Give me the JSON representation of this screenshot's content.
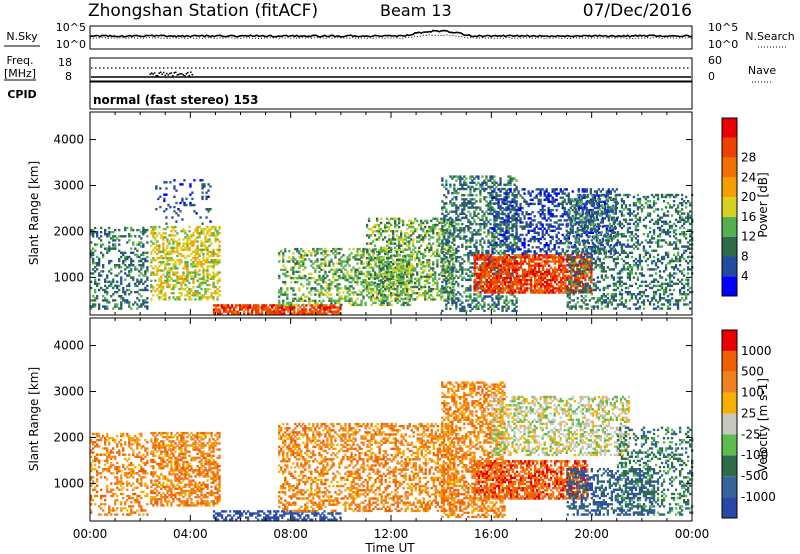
{
  "header": {
    "station": "Zhongshan Station (fitACF)",
    "beam": "Beam 13",
    "date": "07/Dec/2016"
  },
  "noise_panel": {
    "left_label": "N.Sky",
    "left_ticks": [
      "10^5",
      "10^0"
    ],
    "right_label": "N.Search",
    "right_ticks": [
      "10^5",
      "10^0"
    ]
  },
  "freq_panel": {
    "left_label_1": "Freq.",
    "left_label_2": "[MHz]",
    "left_ticks": [
      "18",
      "8"
    ],
    "right_label": "Nave",
    "right_ticks": [
      "60",
      "0"
    ]
  },
  "cpid_panel": {
    "label": "CPID",
    "text": "normal (fast stereo) 153"
  },
  "chart_data": [
    {
      "type": "heatmap",
      "title": "",
      "xlabel": "Time UT",
      "ylabel": "Slant Range [km]",
      "x_ticks": [
        "00:00",
        "04:00",
        "08:00",
        "12:00",
        "16:00",
        "20:00",
        "00:00"
      ],
      "y_ticks": [
        "1000",
        "2000",
        "3000",
        "4000"
      ],
      "ylim": [
        180,
        4600
      ],
      "colorbar": {
        "label": "Power [dB]",
        "ticks": [
          "4",
          "8",
          "12",
          "16",
          "20",
          "24",
          "28"
        ],
        "colors": [
          "#0000ff",
          "#244aa0",
          "#2f6b4a",
          "#54b050",
          "#d8d020",
          "#f5a000",
          "#f07000",
          "#ee4000",
          "#e80000"
        ]
      },
      "regions": [
        {
          "t0": 0.0,
          "t1": 2.3,
          "r0": 300,
          "r1": 2100,
          "level": 2,
          "density": 0.35
        },
        {
          "t0": 2.4,
          "t1": 5.2,
          "r0": 500,
          "r1": 2100,
          "level": 4,
          "density": 0.5
        },
        {
          "t0": 2.6,
          "t1": 4.8,
          "r0": 2150,
          "r1": 3100,
          "level": 1,
          "density": 0.12
        },
        {
          "t0": 4.9,
          "t1": 10.0,
          "r0": 190,
          "r1": 380,
          "level": 7,
          "density": 0.8
        },
        {
          "t0": 7.5,
          "t1": 12.8,
          "r0": 380,
          "r1": 1600,
          "level": 3,
          "density": 0.4
        },
        {
          "t0": 11.0,
          "t1": 14.5,
          "r0": 500,
          "r1": 2300,
          "level": 3,
          "density": 0.45
        },
        {
          "t0": 14.0,
          "t1": 17.0,
          "r0": 250,
          "r1": 3200,
          "level": 2,
          "density": 0.4
        },
        {
          "t0": 15.3,
          "t1": 20.0,
          "r0": 650,
          "r1": 1500,
          "level": 7,
          "density": 0.75
        },
        {
          "t0": 16.0,
          "t1": 21.0,
          "r0": 1500,
          "r1": 2900,
          "level": 1,
          "density": 0.4
        },
        {
          "t0": 19.0,
          "t1": 24.0,
          "r0": 300,
          "r1": 2800,
          "level": 2,
          "density": 0.35
        }
      ]
    },
    {
      "type": "heatmap",
      "title": "",
      "xlabel": "Time UT",
      "ylabel": "Slant Range [km]",
      "x_ticks": [
        "00:00",
        "04:00",
        "08:00",
        "12:00",
        "16:00",
        "20:00",
        "00:00"
      ],
      "y_ticks": [
        "1000",
        "2000",
        "3000",
        "4000"
      ],
      "ylim": [
        180,
        4600
      ],
      "colorbar": {
        "label": "Velocity [m s-1]",
        "ticks": [
          "1000",
          "500",
          "100",
          "25",
          "-25",
          "-100",
          "-500",
          "-1000"
        ],
        "colors": [
          "#2a48a8",
          "#36649a",
          "#2f6b4a",
          "#5cbc50",
          "#c8c8c0",
          "#f6b000",
          "#f08020",
          "#f06000",
          "#e80000"
        ]
      },
      "regions": [
        {
          "t0": 0.0,
          "t1": 2.3,
          "r0": 300,
          "r1": 2100,
          "level": 6,
          "density": 0.35
        },
        {
          "t0": 2.4,
          "t1": 5.2,
          "r0": 500,
          "r1": 2100,
          "level": 6,
          "density": 0.55
        },
        {
          "t0": 4.9,
          "t1": 10.0,
          "r0": 190,
          "r1": 380,
          "level": 0,
          "density": 0.5
        },
        {
          "t0": 7.5,
          "t1": 14.5,
          "r0": 380,
          "r1": 2300,
          "level": 6,
          "density": 0.45
        },
        {
          "t0": 14.0,
          "t1": 16.5,
          "r0": 250,
          "r1": 3200,
          "level": 6,
          "density": 0.5
        },
        {
          "t0": 15.3,
          "t1": 19.8,
          "r0": 650,
          "r1": 1500,
          "level": 7,
          "density": 0.7
        },
        {
          "t0": 16.0,
          "t1": 21.5,
          "r0": 1600,
          "r1": 2900,
          "level": 4,
          "density": 0.45
        },
        {
          "t0": 19.0,
          "t1": 22.5,
          "r0": 300,
          "r1": 1300,
          "level": 1,
          "density": 0.45
        },
        {
          "t0": 21.0,
          "t1": 24.0,
          "r0": 300,
          "r1": 2200,
          "level": 2,
          "density": 0.3
        }
      ]
    }
  ]
}
